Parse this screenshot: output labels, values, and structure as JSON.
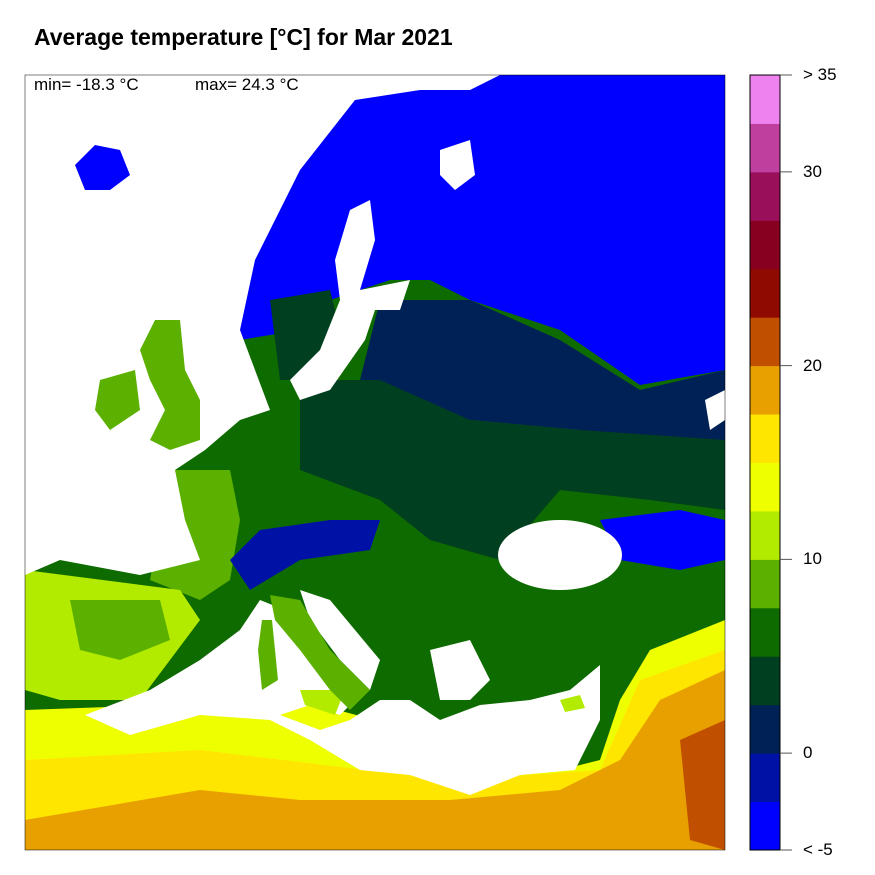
{
  "title": "Average temperature [°C] for Mar 2021",
  "stats": {
    "min_label": "min= -18.3 °C",
    "max_label": "max= 24.3 °C"
  },
  "colorbar": {
    "min": -5,
    "max": 35,
    "step": 2.5,
    "colors": [
      "#0000FF",
      "#0012A6",
      "#002155",
      "#003F1F",
      "#0E6B00",
      "#5CB000",
      "#B3EB00",
      "#EEFF00",
      "#FFE600",
      "#E8A000",
      "#C05000",
      "#8F0A00",
      "#880020",
      "#990F5A",
      "#BF3F9F",
      "#EE82EE"
    ],
    "labels": [
      {
        "text": "< -5",
        "value": -5
      },
      {
        "text": "0",
        "value": 0
      },
      {
        "text": "10",
        "value": 10
      },
      {
        "text": "20",
        "value": 20
      },
      {
        "text": "30",
        "value": 30
      },
      {
        "text": "> 35",
        "value": 35
      }
    ]
  },
  "sea_color": "#FFFFFF"
}
